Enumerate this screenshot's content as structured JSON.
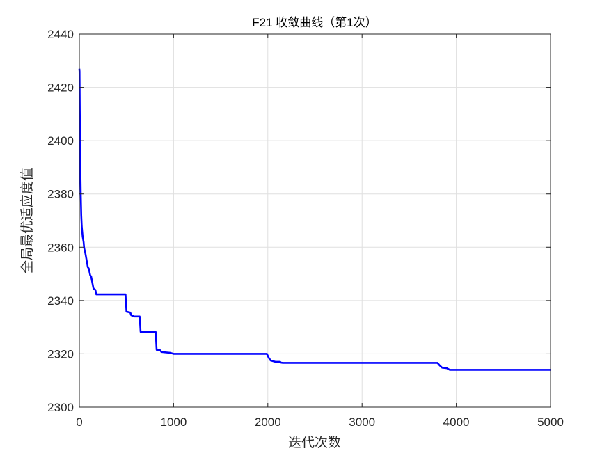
{
  "chart_data": {
    "type": "line",
    "title": "F21 收敛曲线（第1次）",
    "xlabel": "迭代次数",
    "ylabel": "全局最优适应度值",
    "xlim": [
      0,
      5000
    ],
    "ylim": [
      2300,
      2440
    ],
    "xticks": [
      0,
      1000,
      2000,
      3000,
      4000,
      5000
    ],
    "yticks": [
      2300,
      2320,
      2340,
      2360,
      2380,
      2400,
      2420,
      2440
    ],
    "grid": true,
    "series": [
      {
        "color": "#0000ff",
        "x": [
          0,
          2,
          5,
          10,
          15,
          20,
          25,
          30,
          35,
          40,
          45,
          50,
          55,
          60,
          90,
          100,
          115,
          125,
          150,
          170,
          180,
          490,
          500,
          540,
          550,
          580,
          640,
          650,
          810,
          820,
          860,
          870,
          960,
          980,
          1000,
          1990,
          2010,
          2030,
          2060,
          2080,
          2130,
          2140,
          2160,
          3800,
          3820,
          3850,
          3900,
          3930,
          5000
        ],
        "y": [
          2427,
          2426,
          2410,
          2392,
          2380,
          2372,
          2368,
          2366,
          2364,
          2363,
          2362,
          2360,
          2359,
          2358.5,
          2352.5,
          2352,
          2349.5,
          2349,
          2344.5,
          2344,
          2342.3,
          2342.3,
          2335.8,
          2335.5,
          2334.5,
          2334,
          2334,
          2328.2,
          2328.2,
          2321.5,
          2321.3,
          2320.7,
          2320.4,
          2320.2,
          2320,
          2320,
          2318.5,
          2317.5,
          2317.2,
          2317,
          2317,
          2316.7,
          2316.6,
          2316.6,
          2315.8,
          2314.8,
          2314.6,
          2314,
          2314
        ]
      }
    ]
  }
}
